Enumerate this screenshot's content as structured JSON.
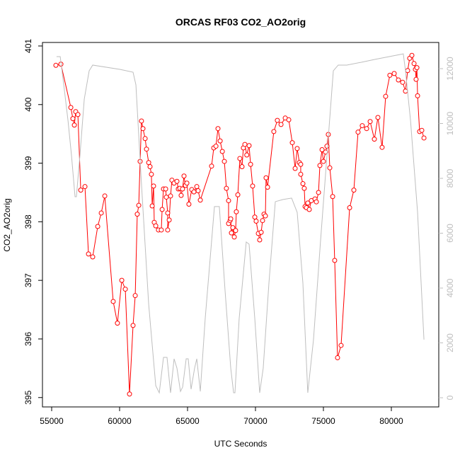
{
  "chart_data": {
    "type": "line",
    "title": "ORCAS RF03 CO2_AO2orig",
    "x_label": "UTC Seconds",
    "y_label": "CO2_AO2orig",
    "xlim": [
      54323,
      83490
    ],
    "xticks": [
      55000,
      60000,
      65000,
      70000,
      75000,
      80000
    ],
    "ylim": [
      394.84,
      401.06
    ],
    "yticks": [
      395,
      396,
      397,
      398,
      399,
      400,
      401
    ],
    "y2lim": [
      -335,
      12955
    ],
    "y2ticks": [
      0,
      2000,
      4000,
      6000,
      8000,
      10000,
      12000
    ],
    "series": [
      {
        "color": "#ff0000",
        "markers": true,
        "x": [
          55310,
          55680,
          56410,
          56560,
          56670,
          56770,
          56930,
          57140,
          57450,
          57710,
          58020,
          58390,
          58650,
          58910,
          59530,
          59840,
          60160,
          60420,
          60730,
          60990,
          61150,
          61300,
          61410,
          61510,
          61610,
          61720,
          61880,
          61980,
          62140,
          62240,
          62340,
          62400,
          62500,
          62550,
          62660,
          62860,
          63070,
          63130,
          63230,
          63390,
          63440,
          63540,
          63540,
          63650,
          63750,
          63850,
          64010,
          64220,
          64320,
          64430,
          64530,
          64630,
          64740,
          64840,
          64950,
          65100,
          65310,
          65470,
          65680,
          65780,
          65940,
          66770,
          66930,
          67090,
          67240,
          67400,
          67560,
          67710,
          67860,
          68020,
          68020,
          68130,
          68180,
          68230,
          68330,
          68440,
          68540,
          68590,
          68700,
          68850,
          69010,
          69110,
          69220,
          69360,
          69530,
          69640,
          69790,
          69950,
          70050,
          70210,
          70310,
          70420,
          70520,
          70630,
          70730,
          70780,
          70890,
          71350,
          71610,
          71880,
          72190,
          72450,
          72710,
          72920,
          73070,
          73230,
          73330,
          73330,
          73490,
          73590,
          73650,
          73750,
          73850,
          73960,
          74110,
          74380,
          74480,
          74640,
          74740,
          74900,
          75000,
          75160,
          75260,
          75360,
          75470,
          75680,
          75830,
          76040,
          76300,
          76930,
          77240,
          77550,
          77860,
          78180,
          78440,
          78750,
          79010,
          79320,
          79580,
          79890,
          80210,
          80520,
          80830,
          81040,
          81200,
          81350,
          81510,
          81670,
          81770,
          81820,
          81880,
          81930,
          82080,
          82240,
          82400
        ],
        "values": [
          400.67,
          400.69,
          399.95,
          399.76,
          399.65,
          399.88,
          399.83,
          398.54,
          398.6,
          397.45,
          397.4,
          397.92,
          398.15,
          398.44,
          396.64,
          396.27,
          397.0,
          396.85,
          395.06,
          396.23,
          396.74,
          398.13,
          398.28,
          399.03,
          399.72,
          399.59,
          399.42,
          399.24,
          399.01,
          398.94,
          398.81,
          398.27,
          398.61,
          397.99,
          397.93,
          397.86,
          397.86,
          398.21,
          398.56,
          398.56,
          398.42,
          398.15,
          397.86,
          398.03,
          398.44,
          398.71,
          398.66,
          398.69,
          398.56,
          398.57,
          398.45,
          398.56,
          398.78,
          398.62,
          398.66,
          398.3,
          398.55,
          398.51,
          398.6,
          398.53,
          398.37,
          398.95,
          399.26,
          399.29,
          399.59,
          399.38,
          399.2,
          399.03,
          398.57,
          398.36,
          397.97,
          398.02,
          398.05,
          397.81,
          397.9,
          397.74,
          397.85,
          398.17,
          398.46,
          399.08,
          398.94,
          399.26,
          399.32,
          399.14,
          399.3,
          398.98,
          398.61,
          398.08,
          398.01,
          397.8,
          397.69,
          397.82,
          398.02,
          398.13,
          398.1,
          398.75,
          398.59,
          399.54,
          399.73,
          399.66,
          399.77,
          399.74,
          399.35,
          398.91,
          399.25,
          399.01,
          398.98,
          398.81,
          398.65,
          398.57,
          398.26,
          398.24,
          398.32,
          398.21,
          398.36,
          398.39,
          398.34,
          398.5,
          398.96,
          399.23,
          399.03,
          399.19,
          399.29,
          399.49,
          398.92,
          398.43,
          397.34,
          395.68,
          395.89,
          398.24,
          398.54,
          399.53,
          399.64,
          399.59,
          399.71,
          399.41,
          399.78,
          399.27,
          400.14,
          400.5,
          400.53,
          400.42,
          400.38,
          400.23,
          400.58,
          400.79,
          400.84,
          400.7,
          400.6,
          400.43,
          400.63,
          400.15,
          399.54,
          399.56,
          399.43
        ]
      },
      {
        "color": "#bebebe",
        "axis": "y2",
        "x": [
          55360,
          55630,
          55890,
          56200,
          56460,
          56720,
          56820,
          57080,
          57400,
          57760,
          58020,
          60050,
          60990,
          61200,
          61610,
          62140,
          62660,
          62920,
          63230,
          63490,
          63750,
          64010,
          64220,
          64480,
          64640,
          64900,
          65050,
          65260,
          65520,
          65680,
          65940,
          66300,
          66980,
          67340,
          67760,
          68180,
          68390,
          68490,
          68800,
          69320,
          69530,
          69950,
          70310,
          70570,
          70990,
          71460,
          72030,
          72660,
          73070,
          73490,
          73850,
          74270,
          74790,
          75260,
          75730,
          76090,
          76720,
          77760,
          78800,
          79840,
          80880,
          81040,
          81410,
          81930,
          82400
        ],
        "values": [
          12440,
          12440,
          11410,
          10120,
          8830,
          7330,
          7330,
          8830,
          10890,
          11920,
          12130,
          11970,
          11870,
          11410,
          7790,
          3410,
          440,
          180,
          1470,
          1470,
          180,
          1420,
          1080,
          230,
          390,
          1420,
          1420,
          310,
          1080,
          1420,
          230,
          2890,
          6970,
          6970,
          3920,
          1080,
          180,
          180,
          2890,
          5680,
          5600,
          2890,
          180,
          1080,
          4180,
          7150,
          7230,
          7280,
          6760,
          4180,
          180,
          2120,
          5730,
          8830,
          11920,
          12130,
          12130,
          12230,
          12340,
          12440,
          12540,
          11920,
          10120,
          6760,
          2120
        ]
      }
    ]
  }
}
